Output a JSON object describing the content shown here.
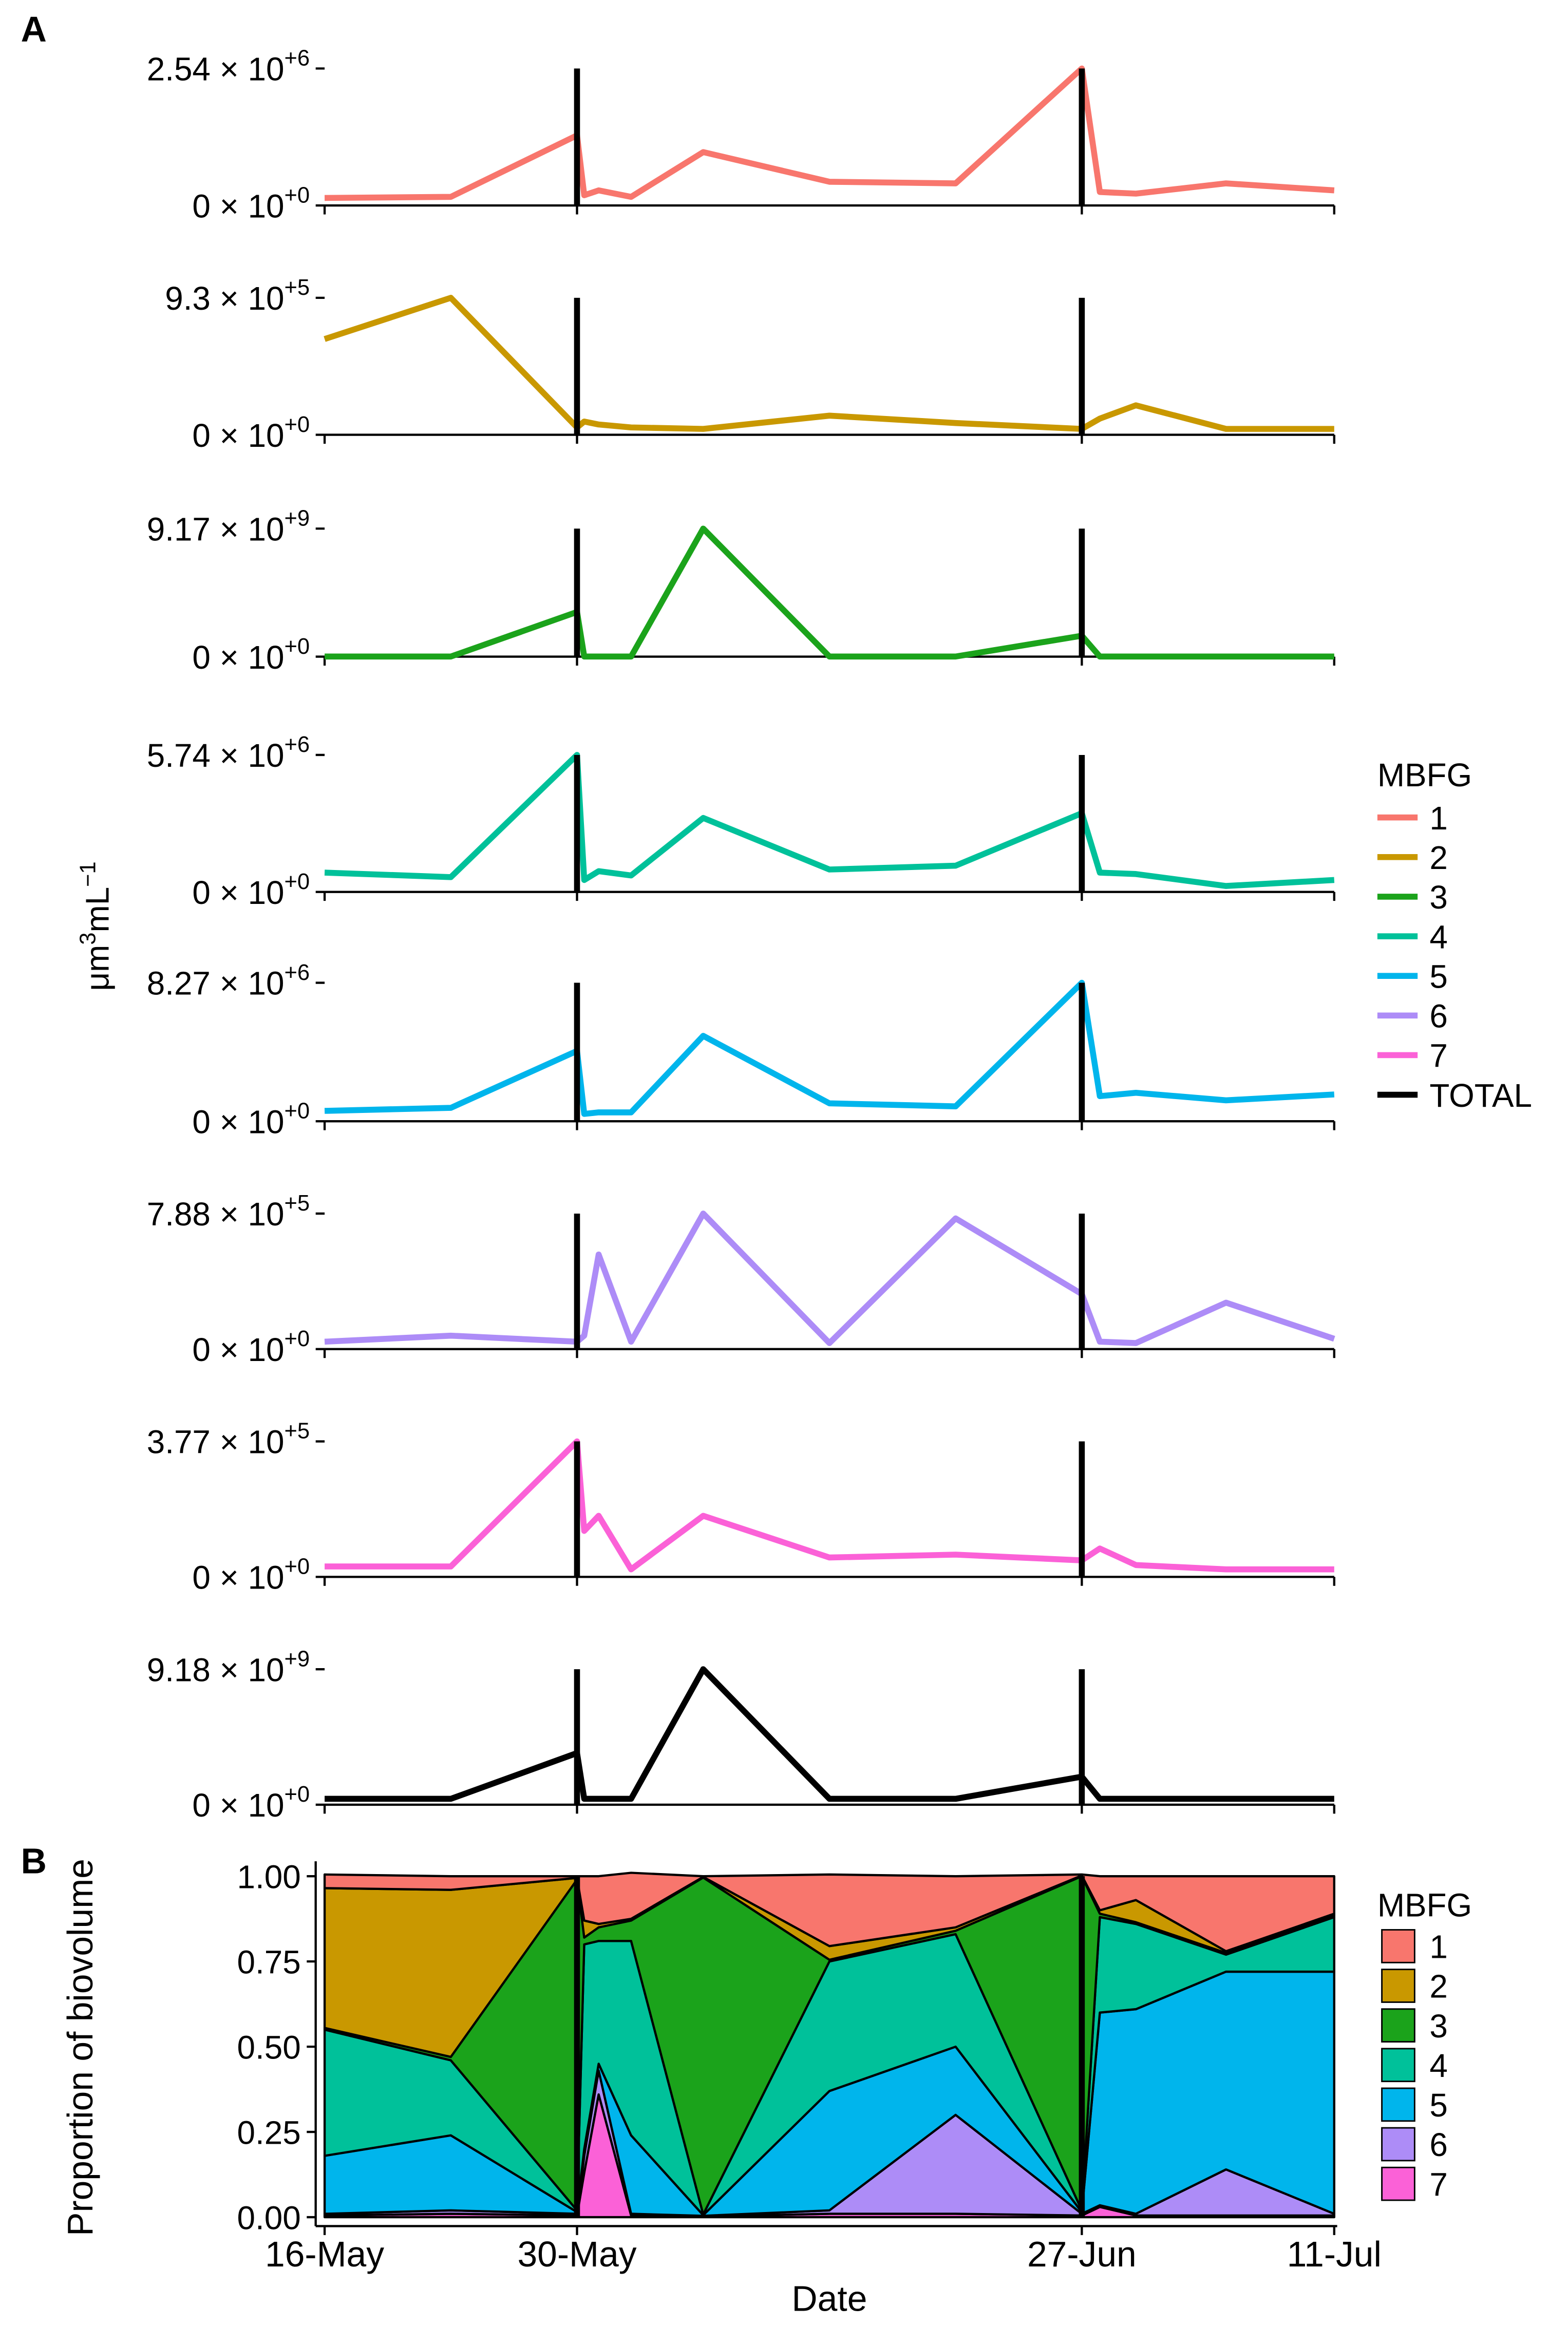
{
  "chart_data": [
    {
      "type": "line",
      "label": "A",
      "x": [
        0,
        7,
        14,
        14.4,
        15.2,
        17,
        21,
        28,
        35,
        42,
        43,
        45,
        50,
        56
      ],
      "xlim": [
        0,
        56
      ],
      "xticks": [
        0,
        14,
        42,
        56
      ],
      "vlines": [
        14,
        42
      ],
      "ylabel": [
        "μm",
        "3",
        "mL",
        "−1"
      ],
      "legend_title": "MBFG",
      "series": [
        {
          "name": "1",
          "color": "#f8766d",
          "ylim": [
            0,
            2540000
          ],
          "yticks": [
            {
              "value": 0,
              "label": "0 × 10",
              "exponent": "+0"
            },
            {
              "value": 2540000,
              "label": "2.54 × 10",
              "exponent": "+6"
            }
          ],
          "values": [
            140000,
            160000,
            1300000,
            190000,
            280000,
            160000,
            990000,
            440000,
            410000,
            2540000,
            250000,
            220000,
            410000,
            280000
          ]
        },
        {
          "name": "2",
          "color": "#c99800",
          "ylim": [
            0,
            930000
          ],
          "yticks": [
            {
              "value": 0,
              "label": "0 × 10",
              "exponent": "+0"
            },
            {
              "value": 930000,
              "label": "9.3 × 10",
              "exponent": "+5"
            }
          ],
          "values": [
            650000,
            930000,
            50000,
            90000,
            70000,
            50000,
            40000,
            130000,
            80000,
            40000,
            110000,
            200000,
            40000,
            40000
          ]
        },
        {
          "name": "3",
          "color": "#1ba31b",
          "ylim": [
            0,
            9170000000
          ],
          "yticks": [
            {
              "value": 0,
              "label": "0 × 10",
              "exponent": "+0"
            },
            {
              "value": 9170000000,
              "label": "9.17 × 10",
              "exponent": "+9"
            }
          ],
          "values": [
            10000000,
            10000000,
            3200000000,
            10000000,
            10000000,
            10000000,
            9170000000,
            10000000,
            10000000,
            1500000000,
            10000000,
            10000000,
            10000000,
            10000000
          ]
        },
        {
          "name": "4",
          "color": "#00c19a",
          "ylim": [
            0,
            5740000
          ],
          "yticks": [
            {
              "value": 0,
              "label": "0 × 10",
              "exponent": "+0"
            },
            {
              "value": 5740000,
              "label": "5.74 × 10",
              "exponent": "+6"
            }
          ],
          "values": [
            810000,
            620000,
            5740000,
            500000,
            870000,
            690000,
            3100000,
            940000,
            1100000,
            3300000,
            810000,
            750000,
            250000,
            500000
          ]
        },
        {
          "name": "5",
          "color": "#00b5ec",
          "ylim": [
            0,
            8270000
          ],
          "yticks": [
            {
              "value": 0,
              "label": "0 × 10",
              "exponent": "+0"
            },
            {
              "value": 8270000,
              "label": "8.27 × 10",
              "exponent": "+6"
            }
          ],
          "values": [
            620000,
            800000,
            4200000,
            440000,
            530000,
            530000,
            5100000,
            1070000,
            890000,
            8270000,
            1500000,
            1700000,
            1250000,
            1600000
          ]
        },
        {
          "name": "6",
          "color": "#ad8cf7",
          "ylim": [
            0,
            788000
          ],
          "yticks": [
            {
              "value": 0,
              "label": "0 × 10",
              "exponent": "+0"
            },
            {
              "value": 788000,
              "label": "7.88 × 10",
              "exponent": "+5"
            }
          ],
          "values": [
            43000,
            78000,
            43000,
            78000,
            550000,
            43000,
            788000,
            35000,
            760000,
            320000,
            43000,
            35000,
            270000,
            60000
          ]
        },
        {
          "name": "7",
          "color": "#fb61d7",
          "ylim": [
            0,
            377000
          ],
          "yticks": [
            {
              "value": 0,
              "label": "0 × 10",
              "exponent": "+0"
            },
            {
              "value": 377000,
              "label": "3.77 × 10",
              "exponent": "+5"
            }
          ],
          "values": [
            29000,
            29000,
            377000,
            128000,
            170000,
            21000,
            170000,
            54000,
            62000,
            46000,
            79000,
            33000,
            21000,
            21000
          ]
        },
        {
          "name": "TOTAL",
          "color": "#000000",
          "ylim": [
            0,
            9180000000
          ],
          "yticks": [
            {
              "value": 0,
              "label": "0 × 10",
              "exponent": "+0"
            },
            {
              "value": 9180000000,
              "label": "9.18 × 10",
              "exponent": "+9"
            }
          ],
          "values": [
            400000000,
            400000000,
            3500000000,
            400000000,
            400000000,
            400000000,
            9180000000,
            400000000,
            400000000,
            1900000000,
            400000000,
            400000000,
            400000000,
            400000000
          ]
        }
      ]
    },
    {
      "type": "area",
      "stacked": true,
      "label": "B",
      "x": [
        0,
        7,
        14,
        14.4,
        15.2,
        17,
        21,
        28,
        35,
        42,
        43,
        45,
        50,
        56
      ],
      "xlim": [
        0,
        56
      ],
      "xticks": [
        {
          "value": 0,
          "label": "16-May"
        },
        {
          "value": 14,
          "label": "30-May"
        },
        {
          "value": 42,
          "label": "27-Jun"
        },
        {
          "value": 56,
          "label": "11-Jul"
        }
      ],
      "vlines": [
        14,
        42
      ],
      "xlabel": "Date",
      "ylabel": "Proportion of biovolume",
      "ylim": [
        0,
        1
      ],
      "yticks": [
        {
          "value": 0,
          "label": "0.00"
        },
        {
          "value": 0.25,
          "label": "0.25"
        },
        {
          "value": 0.5,
          "label": "0.50"
        },
        {
          "value": 0.75,
          "label": "0.75"
        },
        {
          "value": 1,
          "label": "1.00"
        }
      ],
      "legend_title": "MBFG",
      "series": [
        {
          "name": "1",
          "color": "#f8766d",
          "values": [
            0.04,
            0.04,
            0.005,
            0.13,
            0.14,
            0.135,
            0.002,
            0.21,
            0.15,
            0.003,
            0.1,
            0.07,
            0.22,
            0.11
          ]
        },
        {
          "name": "2",
          "color": "#c99800",
          "values": [
            0.41,
            0.49,
            0.005,
            0.05,
            0.01,
            0.005,
            0.002,
            0.04,
            0.01,
            0.002,
            0.01,
            0.065,
            0.005,
            0.005
          ]
        },
        {
          "name": "3",
          "color": "#1ba31b",
          "values": [
            0.005,
            0.01,
            0.97,
            0.02,
            0.04,
            0.06,
            0.988,
            0.005,
            0.01,
            0.98,
            0.01,
            0.005,
            0.005,
            0.005
          ]
        },
        {
          "name": "4",
          "color": "#00c19a",
          "values": [
            0.37,
            0.22,
            0.005,
            0.6,
            0.36,
            0.57,
            0.002,
            0.38,
            0.33,
            0.005,
            0.28,
            0.25,
            0.05,
            0.16
          ]
        },
        {
          "name": "5",
          "color": "#00b5ec",
          "values": [
            0.17,
            0.22,
            0.005,
            0.02,
            0.02,
            0.23,
            0.002,
            0.35,
            0.2,
            0.005,
            0.565,
            0.6,
            0.58,
            0.71
          ]
        },
        {
          "name": "6",
          "color": "#ad8cf7",
          "values": [
            0.005,
            0.01,
            0.005,
            0.05,
            0.07,
            0.005,
            0.002,
            0.01,
            0.29,
            0.005,
            0.005,
            0.005,
            0.135,
            0.005
          ]
        },
        {
          "name": "7",
          "color": "#fb61d7",
          "values": [
            0.005,
            0.01,
            0.005,
            0.13,
            0.36,
            0.005,
            0.002,
            0.01,
            0.01,
            0.005,
            0.03,
            0.005,
            0.005,
            0.005
          ]
        }
      ]
    }
  ]
}
